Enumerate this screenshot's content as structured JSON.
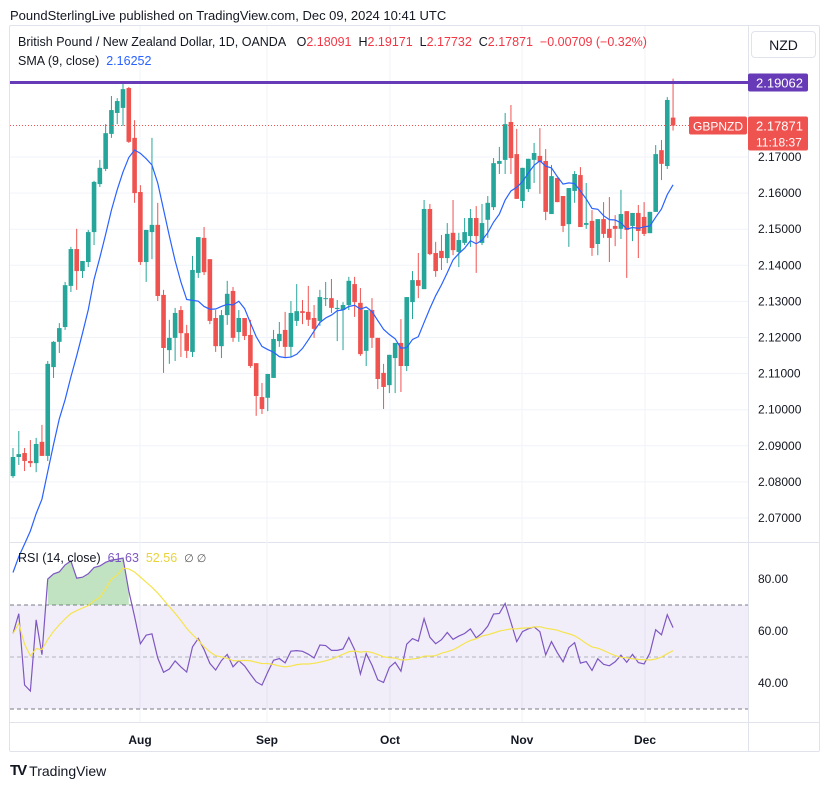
{
  "header": {
    "published": "PoundSterlingLive published on TradingView.com, Dec 09, 2024 10:41 UTC"
  },
  "legend": {
    "symbol": "British Pound / New Zealand Dollar, 1D, OANDA",
    "o_label": "O",
    "o": "2.18091",
    "h_label": "H",
    "h": "2.19171",
    "l_label": "L",
    "l": "2.17732",
    "c_label": "C",
    "c": "2.17871",
    "change": "−0.00709 (−0.32%)",
    "sma_label": "SMA (9, close)",
    "sma_value": "2.16252",
    "rsi_label": "RSI (14, close)",
    "rsi_value": "61.63",
    "rsi_ma_value": "52.56",
    "rsi_extra": "∅ ∅"
  },
  "currency_button": "NZD",
  "price_labels": {
    "hline": "2.19062",
    "symbol_tag": "GBPNZD",
    "last": "2.17871",
    "countdown": "11:18:37"
  },
  "footer": {
    "brand": "TradingView"
  },
  "colors": {
    "up": "#26a69a",
    "down": "#ef5350",
    "sma": "#2962ff",
    "rsi": "#7e57c2",
    "rsi_ma": "#f5e44f",
    "hline": "#673ab7"
  },
  "chart_data": [
    {
      "type": "candlestick",
      "title": "British Pound / New Zealand Dollar, 1D, OANDA",
      "ylim": [
        2.065,
        2.195
      ],
      "y_ticks": [
        "2.07000",
        "2.08000",
        "2.09000",
        "2.10000",
        "2.11000",
        "2.12000",
        "2.13000",
        "2.14000",
        "2.15000",
        "2.16000",
        "2.17000"
      ],
      "x_ticks": [
        "Aug",
        "Sep",
        "Oct",
        "Nov",
        "Dec"
      ],
      "horizontal_line": 2.19062,
      "overlay": "SMA (9, close)",
      "ohlc": [
        [
          2.0816,
          2.0894,
          2.0811,
          2.0869
        ],
        [
          2.0869,
          2.0941,
          2.0847,
          2.0877
        ],
        [
          2.088,
          2.0894,
          2.083,
          2.0858
        ],
        [
          2.0858,
          2.0916,
          2.0841,
          2.0852
        ],
        [
          2.0852,
          2.0922,
          2.0827,
          2.0905
        ],
        [
          2.0911,
          2.0958,
          2.0872,
          2.0872
        ],
        [
          2.0872,
          2.1135,
          2.0858,
          2.1127
        ],
        [
          2.1118,
          2.119,
          2.1088,
          2.1188
        ],
        [
          2.1188,
          2.124,
          2.1157,
          2.1226
        ],
        [
          2.1229,
          2.1354,
          2.1221,
          2.1345
        ],
        [
          2.1343,
          2.1451,
          2.1326,
          2.1445
        ],
        [
          2.1445,
          2.1501,
          2.1332,
          2.1384
        ],
        [
          2.1384,
          2.1412,
          2.1365,
          2.1412
        ],
        [
          2.1409,
          2.1498,
          2.1395,
          2.1492
        ],
        [
          2.1492,
          2.1634,
          2.1456,
          2.1631
        ],
        [
          2.1625,
          2.1692,
          2.1617,
          2.167
        ],
        [
          2.1667,
          2.1791,
          2.1661,
          2.1766
        ],
        [
          2.1764,
          2.1869,
          2.1753,
          2.183
        ],
        [
          2.1822,
          2.1863,
          2.1791,
          2.1855
        ],
        [
          2.1836,
          2.191,
          2.1786,
          2.1888
        ],
        [
          2.1891,
          2.1894,
          2.1739,
          2.1742
        ],
        [
          2.1753,
          2.1802,
          2.1573,
          2.16
        ],
        [
          2.1603,
          2.1622,
          2.1401,
          2.1409
        ],
        [
          2.1409,
          2.1498,
          2.1354,
          2.1498
        ],
        [
          2.1492,
          2.1753,
          2.1417,
          2.1512
        ],
        [
          2.1512,
          2.1573,
          2.1301,
          2.1315
        ],
        [
          2.1318,
          2.1332,
          2.1102,
          2.1171
        ],
        [
          2.1165,
          2.1249,
          2.1127,
          2.1199
        ],
        [
          2.1199,
          2.1282,
          2.1135,
          2.1268
        ],
        [
          2.1276,
          2.1287,
          2.1146,
          2.1212
        ],
        [
          2.1212,
          2.1235,
          2.1143,
          2.1163
        ],
        [
          2.116,
          2.1426,
          2.1146,
          2.1387
        ],
        [
          2.1379,
          2.1478,
          2.1365,
          2.1478
        ],
        [
          2.1476,
          2.1506,
          2.1373,
          2.1381
        ],
        [
          2.1417,
          2.1417,
          2.1237,
          2.1246
        ],
        [
          2.1254,
          2.1276,
          2.116,
          2.1176
        ],
        [
          2.1176,
          2.1276,
          2.1143,
          2.1262
        ],
        [
          2.1262,
          2.1357,
          2.1235,
          2.1321
        ],
        [
          2.1329,
          2.134,
          2.1188,
          2.1199
        ],
        [
          2.1215,
          2.1276,
          2.1188,
          2.1254
        ],
        [
          2.1254,
          2.1254,
          2.1193,
          2.1204
        ],
        [
          2.1207,
          2.1249,
          2.1116,
          2.1121
        ],
        [
          2.1129,
          2.1129,
          2.0983,
          2.1038
        ],
        [
          2.1035,
          2.1074,
          2.0988,
          2.1002
        ],
        [
          2.1033,
          2.1099,
          2.0996,
          2.1099
        ],
        [
          2.1088,
          2.1221,
          2.1088,
          2.1196
        ],
        [
          2.119,
          2.1243,
          2.1174,
          2.121
        ],
        [
          2.1221,
          2.1271,
          2.1146,
          2.1174
        ],
        [
          2.1174,
          2.1301,
          2.1146,
          2.1268
        ],
        [
          2.1246,
          2.1348,
          2.1232,
          2.1273
        ],
        [
          2.1273,
          2.1304,
          2.1237,
          2.1268
        ],
        [
          2.1271,
          2.1343,
          2.1232,
          2.1249
        ],
        [
          2.1254,
          2.129,
          2.1199,
          2.1224
        ],
        [
          2.1246,
          2.1332,
          2.1232,
          2.1312
        ],
        [
          2.1307,
          2.1354,
          2.1287,
          2.1309
        ],
        [
          2.1309,
          2.1362,
          2.1268,
          2.1282
        ],
        [
          2.1279,
          2.1304,
          2.119,
          2.1282
        ],
        [
          2.1276,
          2.1298,
          2.1165,
          2.129
        ],
        [
          2.129,
          2.1368,
          2.1276,
          2.1357
        ],
        [
          2.1348,
          2.1368,
          2.1257,
          2.1298
        ],
        [
          2.1296,
          2.1337,
          2.1149,
          2.1154
        ],
        [
          2.1163,
          2.1276,
          2.1121,
          2.1276
        ],
        [
          2.1276,
          2.1309,
          2.1171,
          2.1199
        ],
        [
          2.1199,
          2.1199,
          2.1057,
          2.1085
        ],
        [
          2.1102,
          2.1127,
          2.1002,
          2.1063
        ],
        [
          2.1068,
          2.1152,
          2.1046,
          2.1152
        ],
        [
          2.1143,
          2.1185,
          2.1046,
          2.1185
        ],
        [
          2.1185,
          2.1251,
          2.1049,
          2.1121
        ],
        [
          2.1121,
          2.1312,
          2.1107,
          2.1312
        ],
        [
          2.1298,
          2.1384,
          2.1251,
          2.1359
        ],
        [
          2.1359,
          2.1434,
          2.1309,
          2.1343
        ],
        [
          2.1334,
          2.1581,
          2.1334,
          2.1556
        ],
        [
          2.1556,
          2.157,
          2.1428,
          2.1431
        ],
        [
          2.1434,
          2.1465,
          2.1368,
          2.1384
        ],
        [
          2.144,
          2.1484,
          2.1387,
          2.142
        ],
        [
          2.142,
          2.1517,
          2.1406,
          2.1487
        ],
        [
          2.149,
          2.1581,
          2.1428,
          2.1442
        ],
        [
          2.1437,
          2.149,
          2.1395,
          2.147
        ],
        [
          2.1462,
          2.1531,
          2.1456,
          2.1492
        ],
        [
          2.1481,
          2.1556,
          2.1451,
          2.1531
        ],
        [
          2.1531,
          2.1564,
          2.1379,
          2.1481
        ],
        [
          2.1462,
          2.157,
          2.1456,
          2.1517
        ],
        [
          2.1526,
          2.1592,
          2.1476,
          2.1573
        ],
        [
          2.1561,
          2.1697,
          2.1553,
          2.1683
        ],
        [
          2.1681,
          2.1728,
          2.1653,
          2.1689
        ],
        [
          2.1692,
          2.1822,
          2.1653,
          2.1791
        ],
        [
          2.1797,
          2.1844,
          2.1653,
          2.1697
        ],
        [
          2.1708,
          2.1778,
          2.1584,
          2.1584
        ],
        [
          2.1578,
          2.167,
          2.1559,
          2.167
        ],
        [
          2.1611,
          2.1695,
          2.1603,
          2.1695
        ],
        [
          2.1692,
          2.1739,
          2.1628,
          2.1711
        ],
        [
          2.1703,
          2.178,
          2.1598,
          2.1686
        ],
        [
          2.1689,
          2.1722,
          2.1525,
          2.1548
        ],
        [
          2.1542,
          2.1678,
          2.1542,
          2.1647
        ],
        [
          2.1642,
          2.1642,
          2.1575,
          2.1575
        ],
        [
          2.1592,
          2.1592,
          2.1492,
          2.1509
        ],
        [
          2.1514,
          2.1614,
          2.1451,
          2.1614
        ],
        [
          2.1606,
          2.1661,
          2.1573,
          2.1653
        ],
        [
          2.165,
          2.1672,
          2.1506,
          2.1506
        ],
        [
          2.1512,
          2.1628,
          2.1501,
          2.1517
        ],
        [
          2.1523,
          2.1553,
          2.1426,
          2.1448
        ],
        [
          2.1459,
          2.1528,
          2.1428,
          2.1528
        ],
        [
          2.1528,
          2.1575,
          2.1476,
          2.1487
        ],
        [
          2.1501,
          2.1589,
          2.1409,
          2.1476
        ],
        [
          2.1509,
          2.1539,
          2.1453,
          2.1501
        ],
        [
          2.1501,
          2.1609,
          2.1473,
          2.1542
        ],
        [
          2.155,
          2.155,
          2.1365,
          2.1498
        ],
        [
          2.1509,
          2.1545,
          2.1467,
          2.1545
        ],
        [
          2.1545,
          2.1567,
          2.142,
          2.1495
        ],
        [
          2.1534,
          2.1575,
          2.1481,
          2.1487
        ],
        [
          2.1489,
          2.1548,
          2.1489,
          2.1548
        ],
        [
          2.1548,
          2.1733,
          2.1548,
          2.1708
        ],
        [
          2.1719,
          2.1747,
          2.1636,
          2.1681
        ],
        [
          2.1675,
          2.1866,
          2.1667,
          2.1858
        ],
        [
          2.18091,
          2.19171,
          2.17732,
          2.17871
        ]
      ]
    },
    {
      "type": "line",
      "title": "RSI (14, close)",
      "ylim": [
        25,
        92
      ],
      "y_ticks": [
        "40.00",
        "60.00",
        "80.00"
      ],
      "bands": [
        30,
        50,
        70
      ],
      "series": [
        "RSI",
        "RSI-based MA"
      ]
    }
  ]
}
